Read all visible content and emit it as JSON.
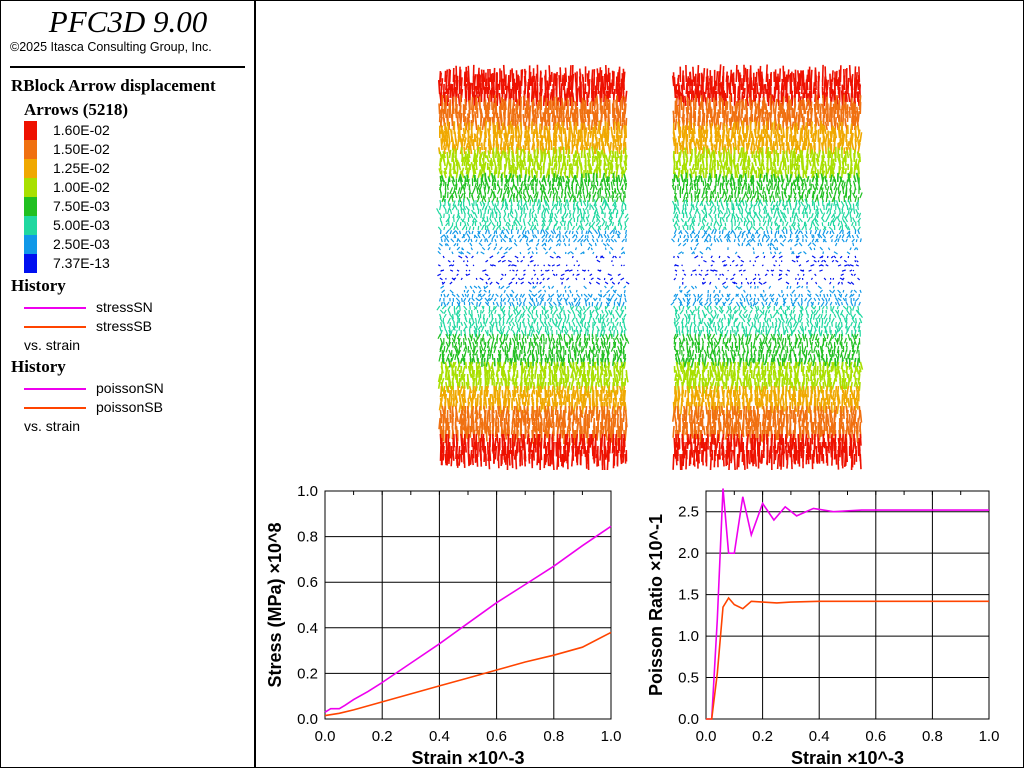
{
  "app": {
    "title": "PFC3D 9.00",
    "copyright": "©2025 Itasca Consulting Group, Inc."
  },
  "legend": {
    "plot_title": "RBlock Arrow displacement",
    "arrows_label": "Arrows (5218)",
    "levels": [
      {
        "label": "1.60E-02",
        "color": "#ee1100"
      },
      {
        "label": "1.50E-02",
        "color": "#f07010"
      },
      {
        "label": "1.25E-02",
        "color": "#f0a800"
      },
      {
        "label": "1.00E-02",
        "color": "#a8e000"
      },
      {
        "label": "7.50E-03",
        "color": "#20c020"
      },
      {
        "label": "5.00E-03",
        "color": "#20d8a0"
      },
      {
        "label": "2.50E-03",
        "color": "#1098e8"
      },
      {
        "label": "7.37E-13",
        "color": "#0010f0"
      }
    ],
    "history1": {
      "title": "History",
      "items": [
        {
          "label": "stressSN",
          "color": "#ee00ee"
        },
        {
          "label": "stressSB",
          "color": "#ff4400"
        }
      ],
      "vs": "vs. strain"
    },
    "history2": {
      "title": "History",
      "items": [
        {
          "label": "poissonSN",
          "color": "#ee00ee"
        },
        {
          "label": "poissonSB",
          "color": "#ff4400"
        }
      ],
      "vs": "vs. strain"
    }
  },
  "chart_data": [
    {
      "type": "line",
      "title": "",
      "xlabel": "Strain ×10^-3",
      "ylabel": "Stress (MPa) ×10^8",
      "xlim": [
        0,
        1
      ],
      "ylim": [
        0,
        1
      ],
      "xticks": [
        "0.0",
        "0.2",
        "0.4",
        "0.6",
        "0.8",
        "1.0"
      ],
      "yticks": [
        "0.0",
        "0.2",
        "0.4",
        "0.6",
        "0.8",
        "1.0"
      ],
      "grid": true,
      "series": [
        {
          "name": "stressSN",
          "color": "#ee00ee",
          "x": [
            0,
            0.02,
            0.05,
            0.07,
            0.1,
            0.15,
            0.2,
            0.3,
            0.4,
            0.5,
            0.6,
            0.7,
            0.8,
            0.9,
            1.0
          ],
          "y": [
            0.03,
            0.045,
            0.045,
            0.06,
            0.085,
            0.12,
            0.16,
            0.245,
            0.33,
            0.42,
            0.51,
            0.59,
            0.67,
            0.76,
            0.845
          ]
        },
        {
          "name": "stressSB",
          "color": "#ff4400",
          "x": [
            0,
            0.05,
            0.1,
            0.2,
            0.3,
            0.4,
            0.5,
            0.6,
            0.7,
            0.8,
            0.9,
            1.0
          ],
          "y": [
            0.015,
            0.025,
            0.04,
            0.075,
            0.11,
            0.145,
            0.18,
            0.215,
            0.25,
            0.28,
            0.315,
            0.38
          ]
        }
      ]
    },
    {
      "type": "line",
      "title": "",
      "xlabel": "Strain ×10^-3",
      "ylabel": "Poisson Ratio ×10^-1",
      "xlim": [
        0,
        1
      ],
      "ylim": [
        0,
        2.75
      ],
      "xticks": [
        "0.0",
        "0.2",
        "0.4",
        "0.6",
        "0.8",
        "1.0"
      ],
      "yticks": [
        "0.0",
        "0.5",
        "1.0",
        "1.5",
        "2.0",
        "2.5"
      ],
      "grid": true,
      "series": [
        {
          "name": "poissonSN",
          "color": "#ee00ee",
          "x": [
            0,
            0.02,
            0.04,
            0.06,
            0.08,
            0.1,
            0.13,
            0.16,
            0.2,
            0.24,
            0.28,
            0.32,
            0.38,
            0.45,
            0.55,
            0.7,
            0.85,
            1.0
          ],
          "y": [
            0,
            0,
            1.2,
            2.78,
            2.0,
            2.0,
            2.68,
            2.22,
            2.6,
            2.4,
            2.56,
            2.45,
            2.54,
            2.5,
            2.52,
            2.52,
            2.52,
            2.52
          ]
        },
        {
          "name": "poissonSB",
          "color": "#ff4400",
          "x": [
            0,
            0.02,
            0.04,
            0.06,
            0.08,
            0.1,
            0.13,
            0.16,
            0.2,
            0.25,
            0.3,
            0.4,
            0.5,
            0.7,
            1.0
          ],
          "y": [
            0,
            0,
            0.55,
            1.35,
            1.46,
            1.38,
            1.33,
            1.42,
            1.41,
            1.4,
            1.41,
            1.42,
            1.42,
            1.42,
            1.42
          ]
        }
      ]
    }
  ]
}
